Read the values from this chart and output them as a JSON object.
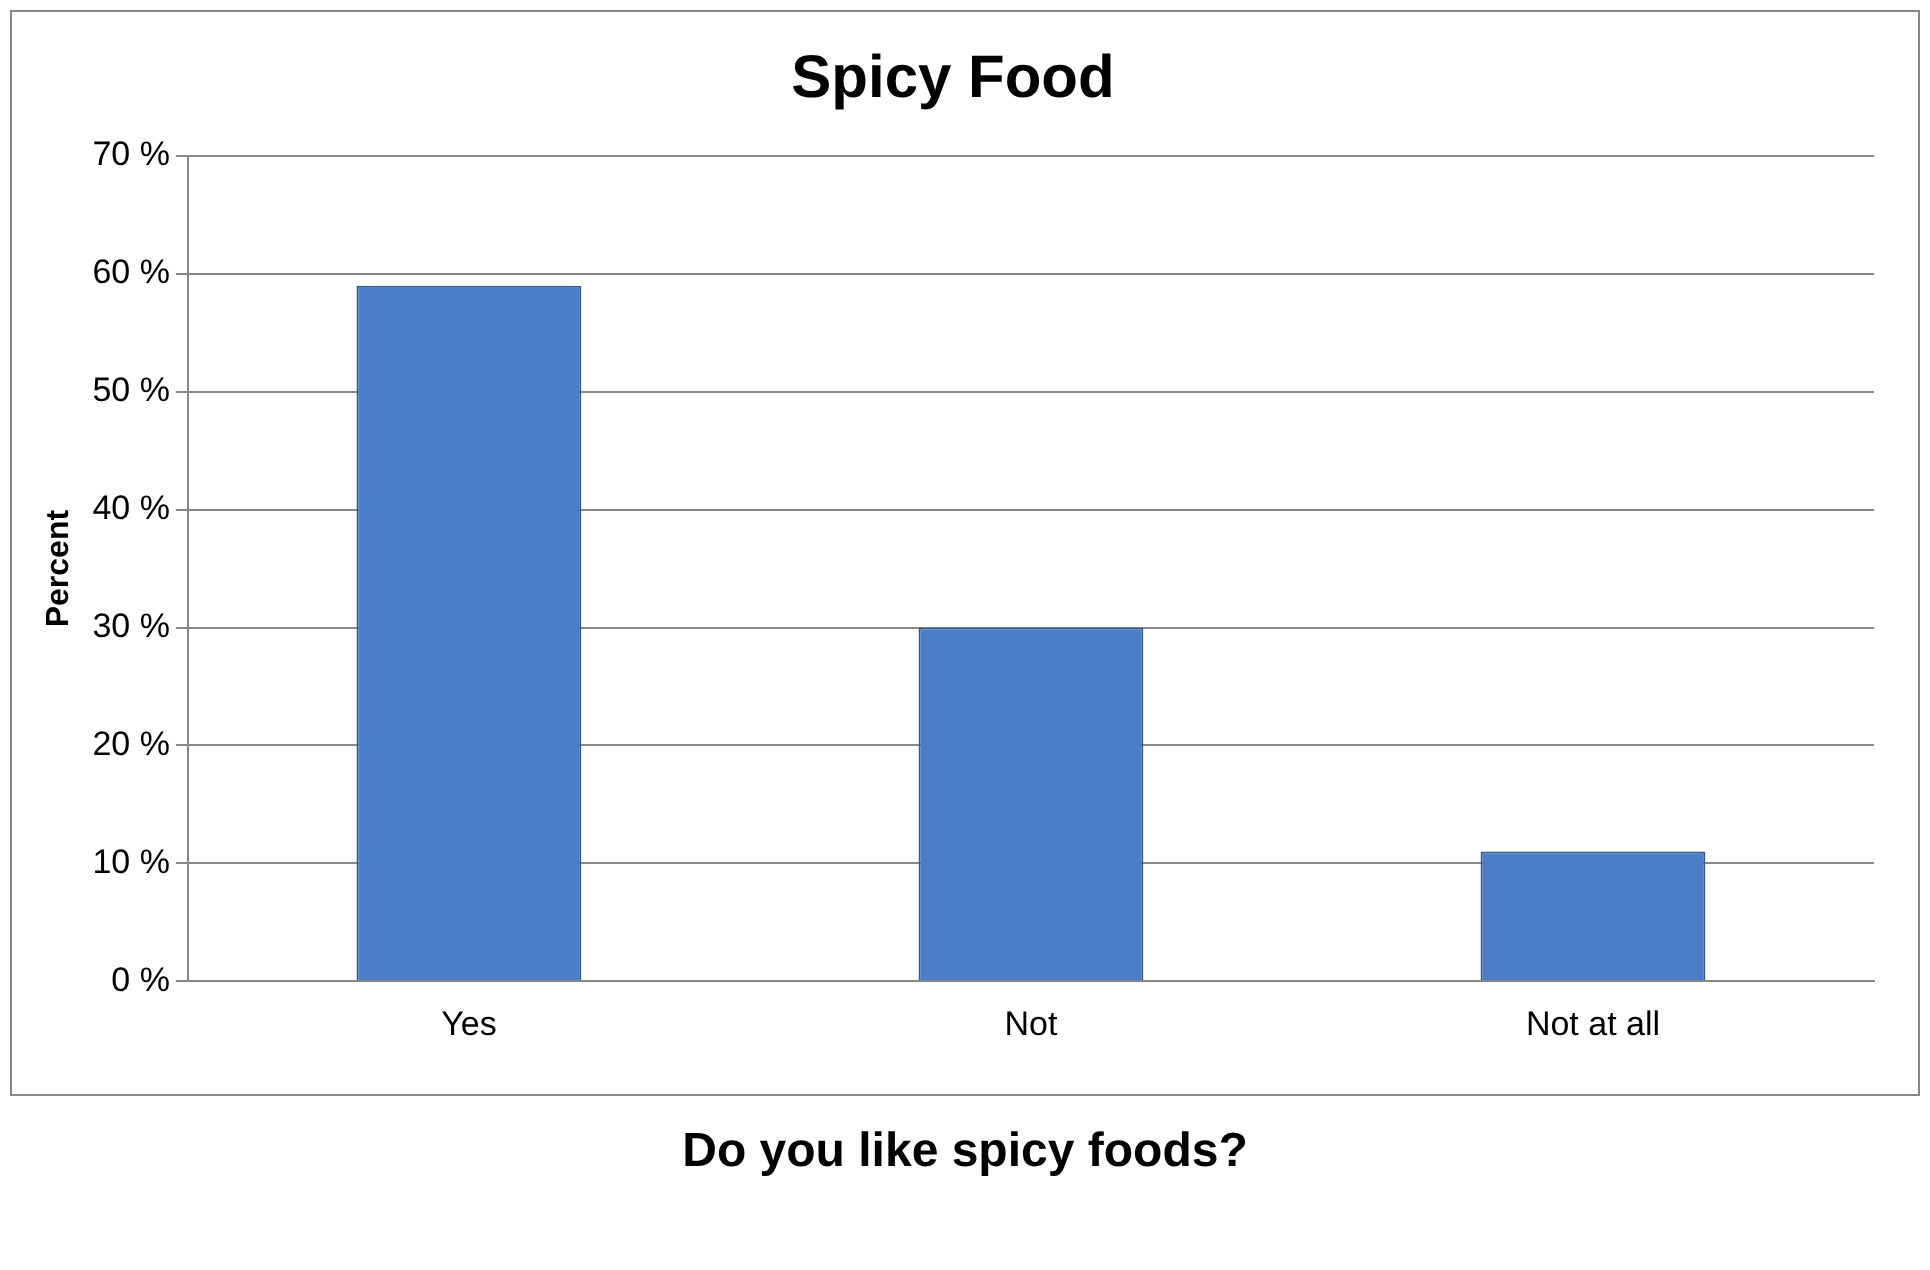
{
  "chart_data": {
    "type": "bar",
    "title": "Spicy Food",
    "ylabel": "Percent",
    "categories": [
      "Yes",
      "Not",
      "Not at all"
    ],
    "values": [
      59,
      30,
      11
    ],
    "color": "#4a7fc8",
    "ylim": [
      0,
      70
    ],
    "yticks": [
      {
        "value": 0,
        "label": "0 %"
      },
      {
        "value": 10,
        "label": "10 %"
      },
      {
        "value": 20,
        "label": "20 %"
      },
      {
        "value": 30,
        "label": "30 %"
      },
      {
        "value": 40,
        "label": "40 %"
      },
      {
        "value": 50,
        "label": "50 %"
      },
      {
        "value": 60,
        "label": "60 %"
      },
      {
        "value": 70,
        "label": "70 %"
      }
    ],
    "grid": "y",
    "annotations": [
      "Do you like spicy foods?"
    ]
  }
}
